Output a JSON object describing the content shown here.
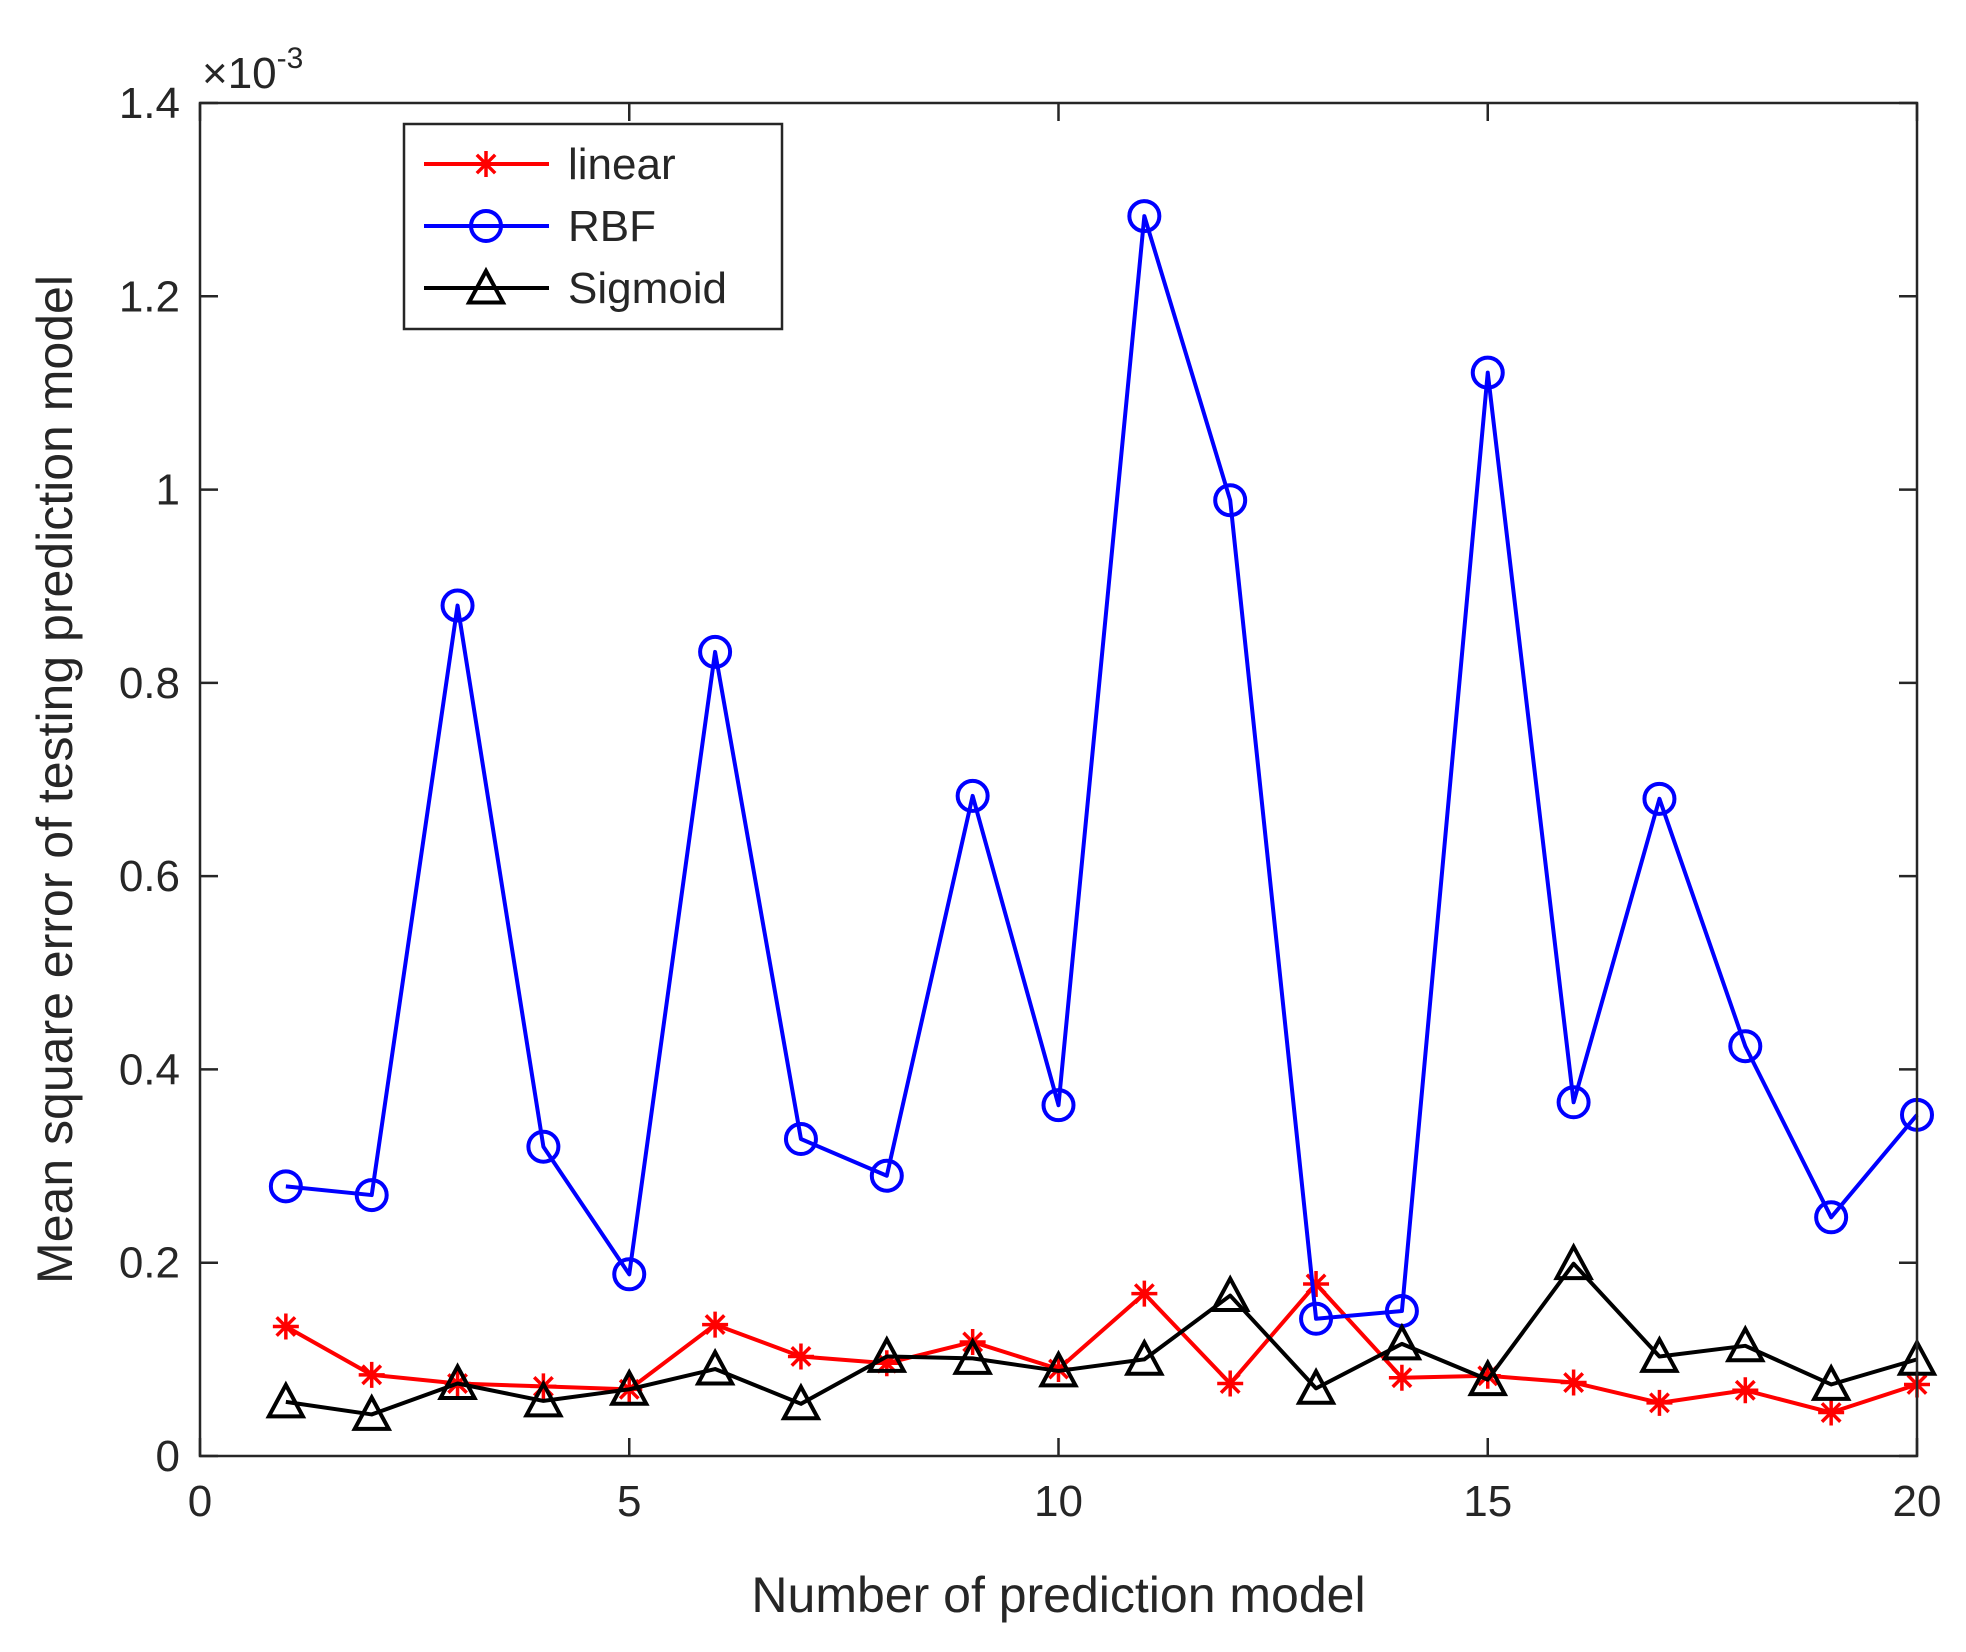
{
  "chart_data": {
    "type": "line",
    "x": [
      1,
      2,
      3,
      4,
      5,
      6,
      7,
      8,
      9,
      10,
      11,
      12,
      13,
      14,
      15,
      16,
      17,
      18,
      19,
      20
    ],
    "series": [
      {
        "name": "linear",
        "color": "#ff0000",
        "marker": "asterisk",
        "values": [
          0.134,
          0.084,
          0.075,
          0.072,
          0.069,
          0.136,
          0.103,
          0.096,
          0.118,
          0.09,
          0.168,
          0.075,
          0.178,
          0.081,
          0.083,
          0.076,
          0.055,
          0.068,
          0.045,
          0.074
        ]
      },
      {
        "name": "RBF",
        "color": "#0000ff",
        "marker": "circle",
        "values": [
          0.279,
          0.27,
          0.88,
          0.32,
          0.188,
          0.832,
          0.328,
          0.29,
          0.683,
          0.363,
          1.283,
          0.989,
          0.142,
          0.15,
          1.121,
          0.366,
          0.68,
          0.424,
          0.247,
          0.353
        ]
      },
      {
        "name": "Sigmoid",
        "color": "#000000",
        "marker": "triangle",
        "values": [
          0.056,
          0.043,
          0.075,
          0.057,
          0.069,
          0.09,
          0.054,
          0.103,
          0.101,
          0.088,
          0.1,
          0.166,
          0.07,
          0.116,
          0.079,
          0.199,
          0.103,
          0.114,
          0.074,
          0.1
        ]
      }
    ],
    "xlabel": "Number of prediction model",
    "ylabel": "Mean square error of testing prediction model",
    "xlim": [
      0,
      20
    ],
    "ylim": [
      0,
      1.4
    ],
    "xticks": [
      0,
      5,
      10,
      15,
      20
    ],
    "yticks": [
      0,
      0.2,
      0.4,
      0.6,
      0.8,
      1,
      1.2,
      1.4
    ],
    "ytick_labels": [
      "0",
      "0.2",
      "0.4",
      "0.6",
      "0.8",
      "1",
      "1.2",
      "1.4"
    ],
    "xtick_labels": [
      "0",
      "5",
      "10",
      "15",
      "20"
    ],
    "y_exponent_base": "×10",
    "y_exponent_power": "-3",
    "legend_position": "top-left",
    "grid": false
  }
}
